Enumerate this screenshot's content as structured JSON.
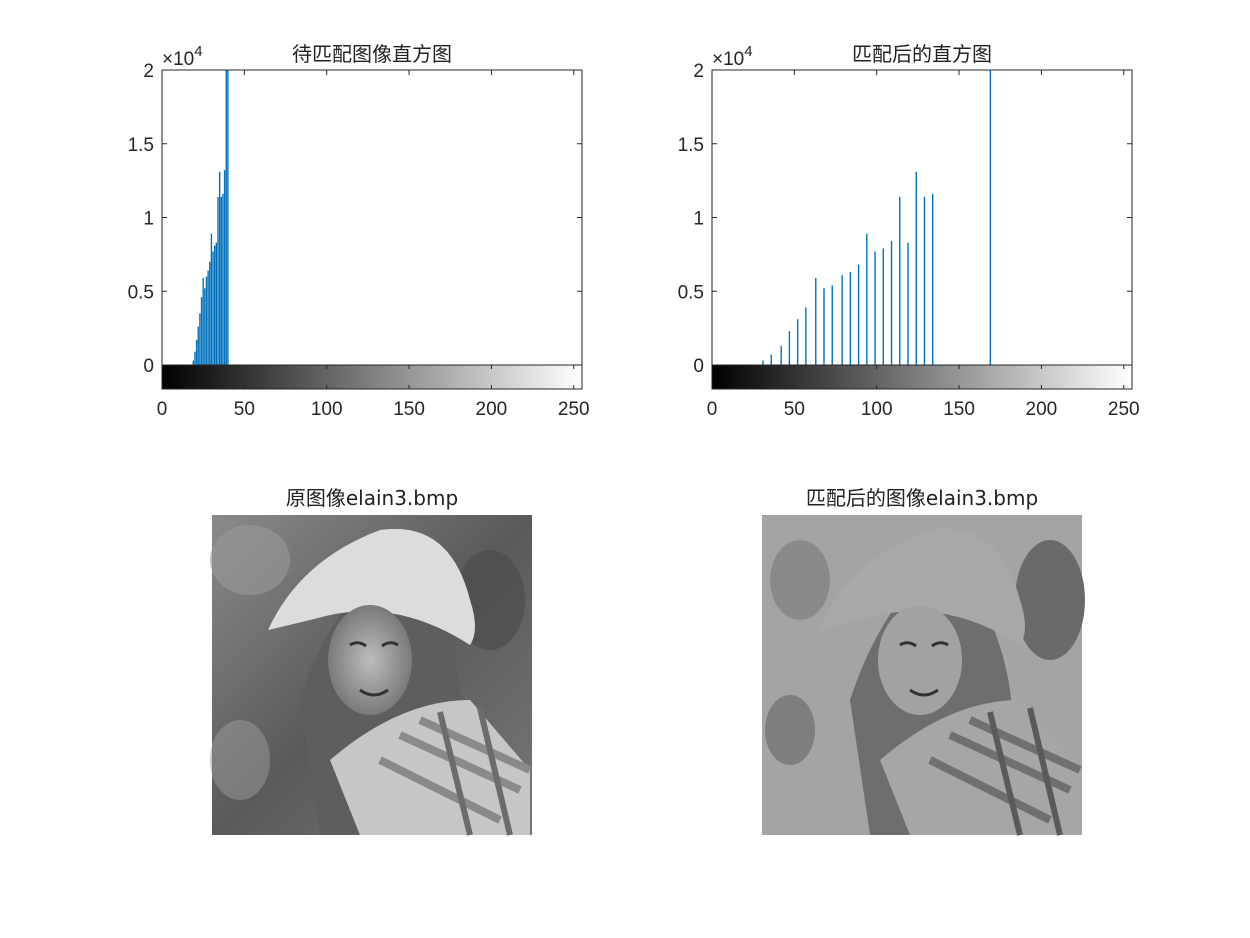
{
  "figure": {
    "panels": {
      "hist_before_title": "待匹配图像直方图",
      "hist_after_title": "匹配后的直方图",
      "image_original_title": "原图像elain3.bmp",
      "image_matched_title": "匹配后的图像elain3.bmp"
    }
  },
  "colors": {
    "bar": "#0072BD",
    "axis": "#262626"
  },
  "chart_data": [
    {
      "type": "bar",
      "title": "待匹配图像直方图",
      "xlim": [
        0,
        255
      ],
      "ylim": [
        0,
        20000
      ],
      "x_ticks": [
        0,
        50,
        100,
        150,
        200,
        250
      ],
      "y_ticks": [
        0,
        5000,
        10000,
        15000,
        20000
      ],
      "x_tick_labels": [
        "0",
        "50",
        "100",
        "150",
        "200",
        "250"
      ],
      "y_tick_labels": [
        "0",
        "0.5",
        "1",
        "1.5",
        "2"
      ],
      "y_exponent_base": "×10",
      "y_exponent": "4",
      "colorbar": "grayscale 0-255",
      "x": [
        19,
        20,
        21,
        22,
        23,
        24,
        25,
        26,
        27,
        28,
        29,
        30,
        31,
        32,
        33,
        34,
        35,
        36,
        37,
        38,
        39,
        40
      ],
      "values": [
        300,
        900,
        1700,
        2600,
        3500,
        4600,
        5900,
        5200,
        6000,
        6400,
        7000,
        8900,
        7700,
        8100,
        8300,
        11400,
        13100,
        11400,
        11600,
        13200,
        20000,
        20000
      ]
    },
    {
      "type": "bar",
      "title": "匹配后的直方图",
      "xlim": [
        0,
        255
      ],
      "ylim": [
        0,
        20000
      ],
      "x_ticks": [
        0,
        50,
        100,
        150,
        200,
        250
      ],
      "y_ticks": [
        0,
        5000,
        10000,
        15000,
        20000
      ],
      "x_tick_labels": [
        "0",
        "50",
        "100",
        "150",
        "200",
        "250"
      ],
      "y_tick_labels": [
        "0",
        "0.5",
        "1",
        "1.5",
        "2"
      ],
      "y_exponent_base": "×10",
      "y_exponent": "4",
      "colorbar": "grayscale 0-255",
      "x": [
        31,
        36,
        42,
        47,
        52,
        57,
        63,
        68,
        73,
        79,
        84,
        89,
        94,
        99,
        104,
        109,
        114,
        119,
        124,
        129,
        134,
        169
      ],
      "values": [
        300,
        700,
        1300,
        2300,
        3100,
        3900,
        5900,
        5200,
        5400,
        6100,
        6300,
        6800,
        8900,
        7700,
        7900,
        8400,
        11400,
        8300,
        13100,
        11400,
        11600,
        20000
      ]
    }
  ]
}
